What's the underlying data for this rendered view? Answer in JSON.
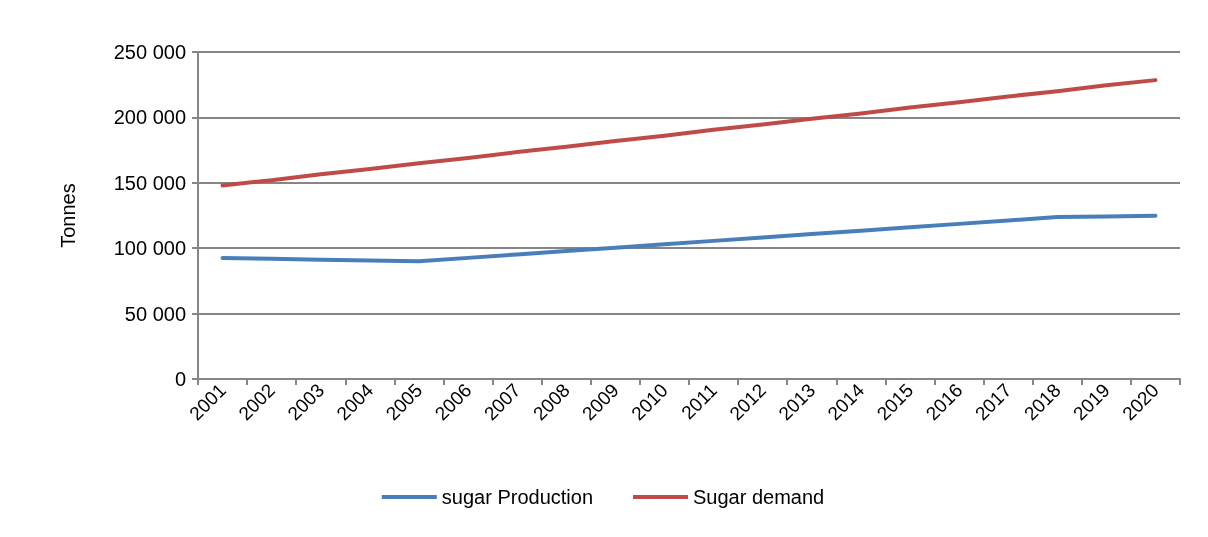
{
  "chart_data": {
    "type": "line",
    "ylabel": "Tonnes",
    "categories": [
      "2001",
      "2002",
      "2003",
      "2004",
      "2005",
      "2006",
      "2007",
      "2008",
      "2009",
      "2010",
      "2011",
      "2012",
      "2013",
      "2014",
      "2015",
      "2016",
      "2017",
      "2018",
      "2019",
      "2020"
    ],
    "series": [
      {
        "name": "sugar Production",
        "color": "#4a7ebb",
        "values": [
          92500,
          91900,
          91200,
          90600,
          90000,
          92600,
          95200,
          97800,
          100400,
          103000,
          105600,
          108200,
          110800,
          113400,
          116000,
          118600,
          121200,
          123800,
          124300,
          124800
        ]
      },
      {
        "name": "Sugar demand",
        "color": "#be4b48",
        "values": [
          148000,
          152000,
          156500,
          160500,
          165000,
          169000,
          173500,
          177500,
          182000,
          186000,
          190500,
          194500,
          199000,
          203000,
          207500,
          211500,
          216000,
          220000,
          224500,
          228500
        ]
      }
    ],
    "ylim": [
      0,
      250000
    ],
    "yticks": [
      0,
      {
        "value": 50000,
        "label": "50 000"
      },
      {
        "value": 100000,
        "label": "100 000"
      },
      {
        "value": 150000,
        "label": "150 000"
      },
      {
        "value": 200000,
        "label": "200 000"
      },
      {
        "value": 250000,
        "label": "250 000"
      }
    ],
    "grid": "y",
    "legend": "bottom",
    "marker": "none",
    "line_style": "solid"
  }
}
